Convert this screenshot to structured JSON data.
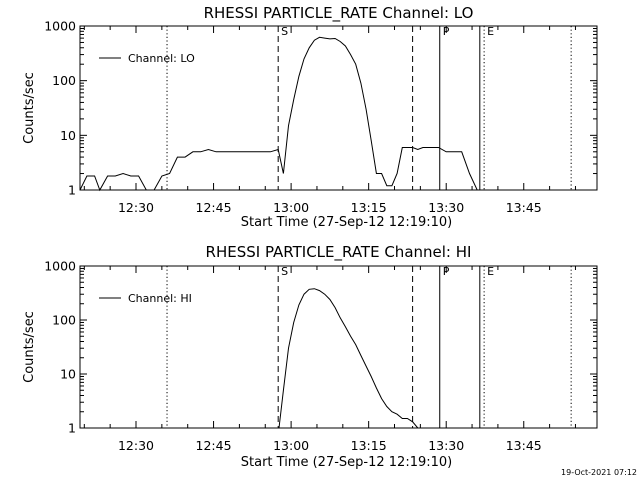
{
  "footer": {
    "timestamp": "19-Oct-2021 07:12"
  },
  "chart_data": [
    {
      "type": "line",
      "title": "RHESSI PARTICLE_RATE Channel: LO",
      "xlabel": "Start Time (27-Sep-12 12:19:10)",
      "ylabel": "Counts/sec",
      "legend": "Channel: LO",
      "legend_position": "top-left",
      "y_scale": "log",
      "ylim": [
        1,
        1000
      ],
      "yticks": [
        "1",
        "10",
        "100",
        "1000"
      ],
      "xlim": [
        "12:19:10",
        "13:59:10"
      ],
      "xticks": [
        "12:30",
        "12:45",
        "13:00",
        "13:15",
        "13:30",
        "13:45"
      ],
      "x": [
        "12:19:10",
        "12:20:30",
        "12:22:00",
        "12:23:00",
        "12:24:30",
        "12:26:00",
        "12:27:30",
        "12:29:00",
        "12:30:30",
        "12:32:00",
        "12:33:30",
        "12:35:00",
        "12:36:30",
        "12:38:00",
        "12:39:30",
        "12:41:00",
        "12:42:30",
        "12:44:00",
        "12:45:30",
        "12:47:00",
        "12:48:30",
        "12:50:00",
        "12:51:30",
        "12:53:00",
        "12:54:30",
        "12:56:00",
        "12:57:30",
        "12:58:30",
        "12:59:30",
        "13:00:30",
        "13:01:30",
        "13:02:30",
        "13:03:30",
        "13:04:30",
        "13:05:30",
        "13:06:30",
        "13:07:30",
        "13:08:30",
        "13:09:30",
        "13:10:30",
        "13:11:30",
        "13:12:30",
        "13:13:30",
        "13:14:30",
        "13:15:30",
        "13:16:30",
        "13:17:30",
        "13:18:30",
        "13:19:30",
        "13:20:30",
        "13:21:30",
        "13:22:30",
        "13:23:30",
        "13:24:30",
        "13:25:30",
        "13:27:00",
        "13:28:30",
        "13:30:00",
        "13:31:30",
        "13:33:00",
        "13:34:30",
        "13:36:00",
        "13:37:30",
        "13:39:00",
        "13:40:30",
        "13:42:00",
        "13:43:30",
        "13:45:00",
        "13:46:30",
        "13:48:00",
        "13:49:30",
        "13:51:00",
        "13:52:30",
        "13:54:00",
        "13:55:30",
        "13:57:00"
      ],
      "series": [
        {
          "name": "Channel: LO",
          "values": [
            1,
            1.8,
            1.8,
            1,
            1.8,
            1.8,
            2,
            1.8,
            1.8,
            1,
            1,
            1.8,
            2,
            4,
            4,
            5,
            5,
            5.5,
            5,
            5,
            5,
            5,
            5,
            5,
            5,
            5,
            5.5,
            2,
            15,
            45,
            120,
            250,
            400,
            550,
            620,
            600,
            580,
            590,
            520,
            430,
            300,
            200,
            90,
            30,
            8,
            2,
            2,
            1.2,
            1.2,
            2,
            6,
            6,
            6,
            5.5,
            6,
            6,
            6,
            5,
            5,
            5,
            2,
            1,
            1,
            1,
            1,
            1,
            1,
            1,
            1,
            1,
            1,
            1,
            1,
            1,
            1,
            1
          ]
        }
      ],
      "markers": [
        {
          "x": "12:36:00",
          "label": "",
          "style": "dotted"
        },
        {
          "x": "12:57:30",
          "label": "S",
          "style": "dashed"
        },
        {
          "x": "13:23:30",
          "label": "",
          "style": "dashed"
        },
        {
          "x": "13:28:45",
          "label": "P",
          "style": "solid"
        },
        {
          "x": "13:36:30",
          "label": "",
          "style": "solid"
        },
        {
          "x": "13:37:20",
          "label": "E",
          "style": "dotted"
        },
        {
          "x": "13:54:10",
          "label": "",
          "style": "dotted"
        }
      ]
    },
    {
      "type": "line",
      "title": "RHESSI PARTICLE_RATE Channel: HI",
      "xlabel": "Start Time (27-Sep-12 12:19:10)",
      "ylabel": "Counts/sec",
      "legend": "Channel: HI",
      "legend_position": "top-left",
      "y_scale": "log",
      "ylim": [
        1,
        1000
      ],
      "yticks": [
        "1",
        "10",
        "100",
        "1000"
      ],
      "xlim": [
        "12:19:10",
        "13:59:10"
      ],
      "xticks": [
        "12:30",
        "12:45",
        "13:00",
        "13:15",
        "13:30",
        "13:45"
      ],
      "x": [
        "12:57:40",
        "12:58:30",
        "12:59:30",
        "13:00:30",
        "13:01:30",
        "13:02:30",
        "13:03:30",
        "13:04:30",
        "13:05:30",
        "13:06:30",
        "13:07:30",
        "13:08:30",
        "13:09:30",
        "13:10:30",
        "13:11:30",
        "13:12:30",
        "13:13:30",
        "13:14:30",
        "13:15:30",
        "13:16:30",
        "13:17:30",
        "13:18:30",
        "13:19:30",
        "13:20:30",
        "13:21:30",
        "13:22:30",
        "13:23:30",
        "13:24:30"
      ],
      "series": [
        {
          "name": "Channel: HI",
          "values": [
            1,
            5,
            30,
            90,
            190,
            300,
            370,
            380,
            350,
            300,
            240,
            170,
            110,
            75,
            50,
            35,
            22,
            14,
            9,
            5.5,
            3.5,
            2.5,
            2,
            1.8,
            1.5,
            1.5,
            1.3,
            1
          ]
        }
      ],
      "markers": [
        {
          "x": "12:36:00",
          "label": "",
          "style": "dotted"
        },
        {
          "x": "12:57:30",
          "label": "S",
          "style": "dashed"
        },
        {
          "x": "13:23:30",
          "label": "",
          "style": "dashed"
        },
        {
          "x": "13:28:45",
          "label": "P",
          "style": "solid"
        },
        {
          "x": "13:36:30",
          "label": "",
          "style": "solid"
        },
        {
          "x": "13:37:20",
          "label": "E",
          "style": "dotted"
        },
        {
          "x": "13:54:10",
          "label": "",
          "style": "dotted"
        }
      ]
    }
  ]
}
